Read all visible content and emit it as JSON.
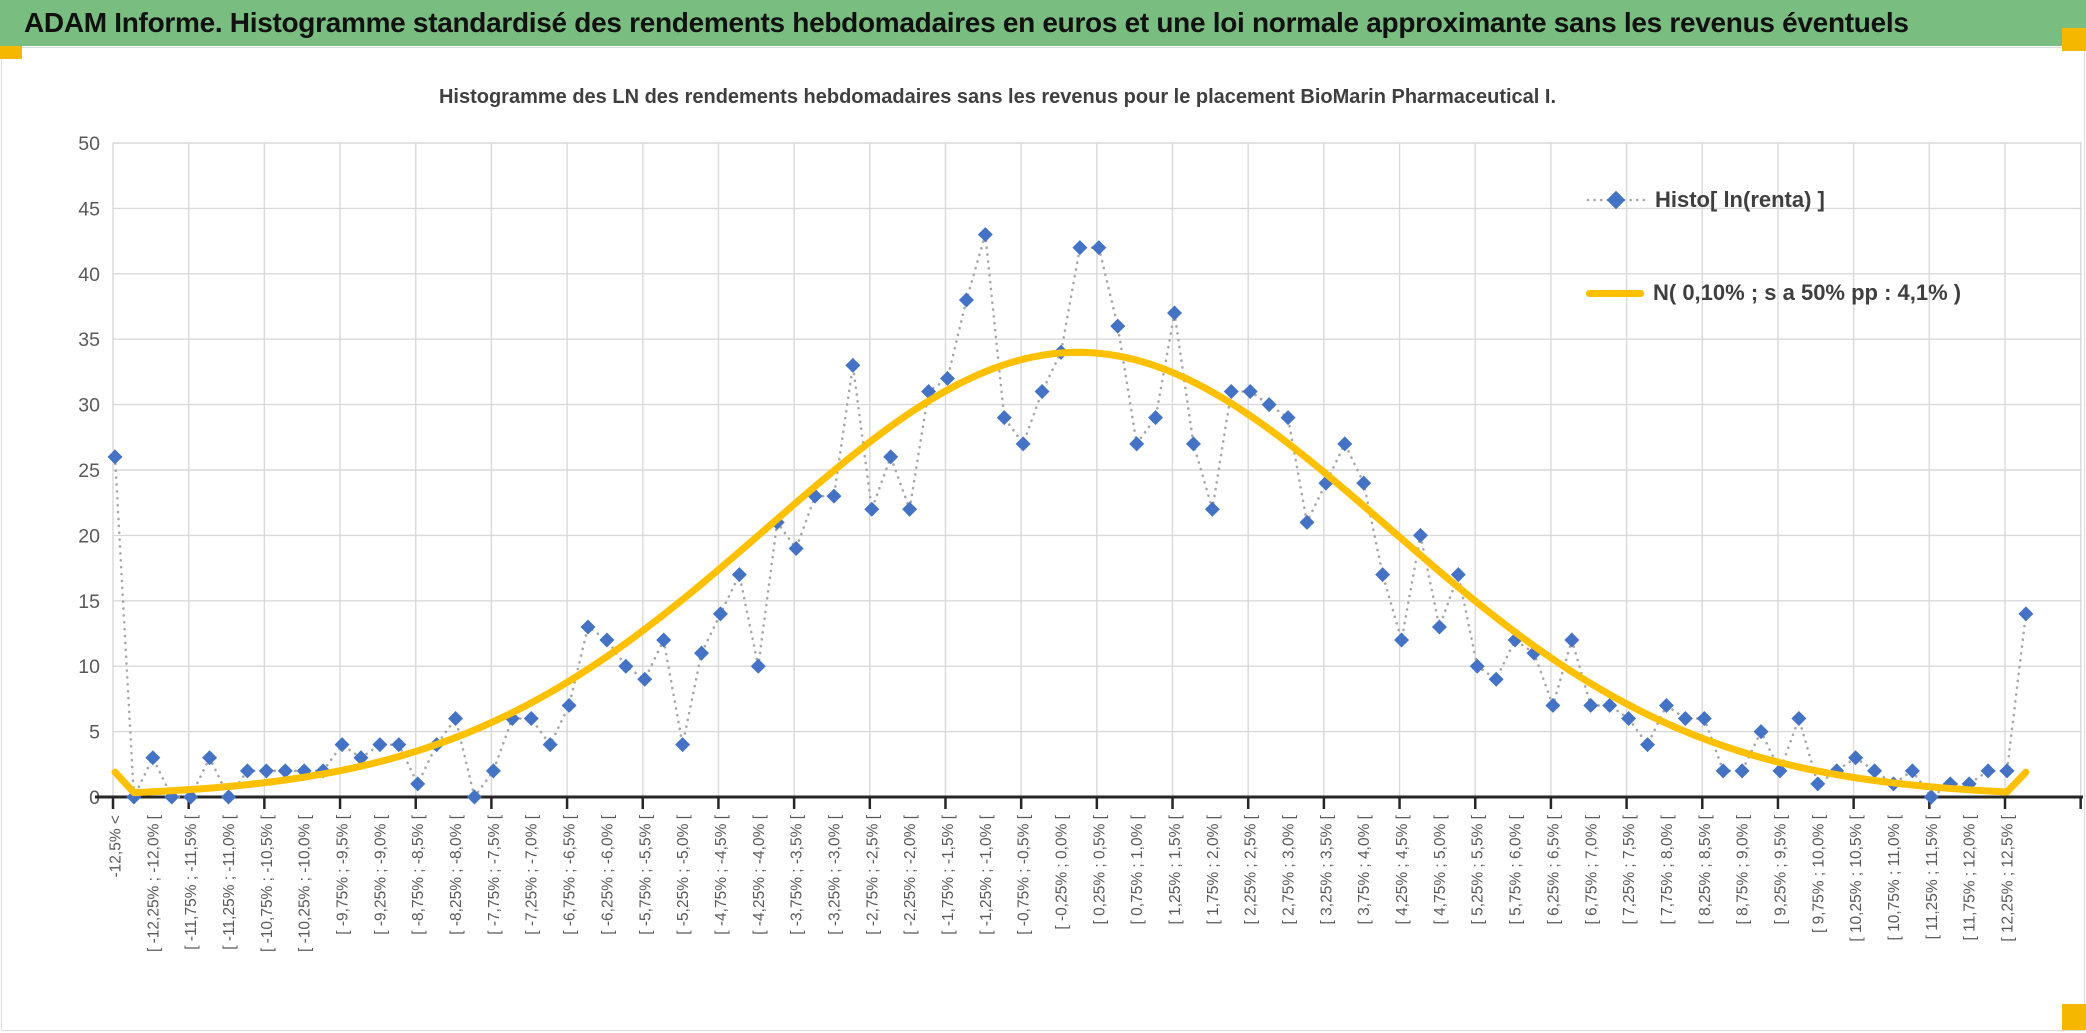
{
  "title_bar": {
    "label": "ADAM Informe. Histogramme standardisé des rendements hebdomadaires en euros et une loi normale approximante sans les revenus éventuels",
    "bg_color": "#7abd80",
    "text_color": "#111111"
  },
  "chart_data": {
    "type": "line",
    "title": "Histogramme des LN des rendements hebdomadaires sans les revenus pour le placement BioMarin Pharmaceutical I.",
    "xlabel": "",
    "ylabel": "",
    "ylim": [
      0,
      50
    ],
    "y_tick_step": 5,
    "y_tick_labels": [
      "50",
      "45",
      "40",
      "35",
      "30",
      "25",
      "20",
      "15",
      "10",
      "5",
      "0"
    ],
    "grid": true,
    "legend_position": "upper-right",
    "n_bins": 102,
    "label_every_n_bins": 2,
    "x_tick_labels": [
      "-12,5% <",
      "[ -12,25% ; -12,0% [",
      "[ -11,75% ; -11,5% [",
      "[ -11,25% ; -11,0% [",
      "[ -10,75% ; -10,5% [",
      "[ -10,25% ; -10,0% [",
      "[ -9,75% ; -9,5% [",
      "[ -9,25% ; -9,0% [",
      "[ -8,75% ; -8,5% [",
      "[ -8,25% ; -8,0% [",
      "[ -7,75% ; -7,5% [",
      "[ -7,25% ; -7,0% [",
      "[ -6,75% ; -6,5% [",
      "[ -6,25% ; -6,0% [",
      "[ -5,75% ; -5,5% [",
      "[ -5,25% ; -5,0% [",
      "[ -4,75% ; -4,5% [",
      "[ -4,25% ; -4,0% [",
      "[ -3,75% ; -3,5% [",
      "[ -3,25% ; -3,0% [",
      "[ -2,75% ; -2,5% [",
      "[ -2,25% ; -2,0% [",
      "[ -1,75% ; -1,5% [",
      "[ -1,25% ; -1,0% [",
      "[ -0,75% ; -0,5% [",
      "[ -0,25% ; 0,0% [",
      "[ 0,25% ; 0,5% [",
      "[ 0,75% ; 1,0% [",
      "[ 1,25% ; 1,5% [",
      "[ 1,75% ; 2,0% [",
      "[ 2,25% ; 2,5% [",
      "[ 2,75% ; 3,0% [",
      "[ 3,25% ; 3,5% [",
      "[ 3,75% ; 4,0% [",
      "[ 4,25% ; 4,5% [",
      "[ 4,75% ; 5,0% [",
      "[ 5,25% ; 5,5% [",
      "[ 5,75% ; 6,0% [",
      "[ 6,25% ; 6,5% [",
      "[ 6,75% ; 7,0% [",
      "[ 7,25% ; 7,5% [",
      "[ 7,75% ; 8,0% [",
      "[ 8,25% ; 8,5% [",
      "[ 8,75% ; 9,0% [",
      "[ 9,25% ; 9,5% [",
      "[ 9,75% ; 10,0% [",
      "[ 10,25% ; 10,5% [",
      "[ 10,75% ; 11,0% [",
      "[ 11,25% ; 11,5% [",
      "[ 11,75% ; 12,0% [",
      "[ 12,25% ; 12,5% ["
    ],
    "series": [
      {
        "name": "Histo[ ln(renta) ]",
        "type": "scatter",
        "marker": "diamond",
        "marker_color": "#4472c4",
        "line_style": "dotted",
        "line_color": "#a6a6a6",
        "values": [
          26,
          0,
          3,
          0,
          0,
          3,
          0,
          2,
          2,
          2,
          2,
          2,
          4,
          3,
          4,
          4,
          1,
          4,
          6,
          0,
          2,
          6,
          6,
          4,
          7,
          13,
          12,
          10,
          9,
          12,
          4,
          11,
          14,
          17,
          10,
          21,
          19,
          23,
          23,
          33,
          22,
          26,
          22,
          31,
          32,
          38,
          43,
          29,
          27,
          31,
          34,
          42,
          42,
          36,
          27,
          29,
          37,
          27,
          22,
          31,
          31,
          30,
          29,
          21,
          24,
          27,
          24,
          17,
          12,
          20,
          13,
          17,
          10,
          9,
          12,
          11,
          7,
          12,
          7,
          7,
          6,
          4,
          7,
          6,
          6,
          2,
          2,
          5,
          2,
          6,
          1,
          2,
          3,
          2,
          1,
          2,
          0,
          1,
          1,
          2,
          2,
          14
        ]
      },
      {
        "name": "N( 0,10% ; s a 50% pp : 4,1% )",
        "type": "line",
        "smooth": true,
        "color": "#ffc000",
        "normal_params": {
          "mean_label": "0,10%",
          "sigma_label": "4,1%",
          "peak_height": 34,
          "mean_bin": 50.9,
          "sigma_bins": 16.4,
          "tail_bin_value": 1.9
        }
      }
    ]
  },
  "colors": {
    "gridline": "#d9d9d9",
    "axis_line": "#262626",
    "tick_label": "#595959",
    "chart_text": "#3f3f3f",
    "selection_handle": "#f5b700",
    "diamond_blue": "#4472c4",
    "curve_yellow": "#ffc000",
    "dotted_gray": "#a6a6a6",
    "title_green": "#7abd80"
  }
}
